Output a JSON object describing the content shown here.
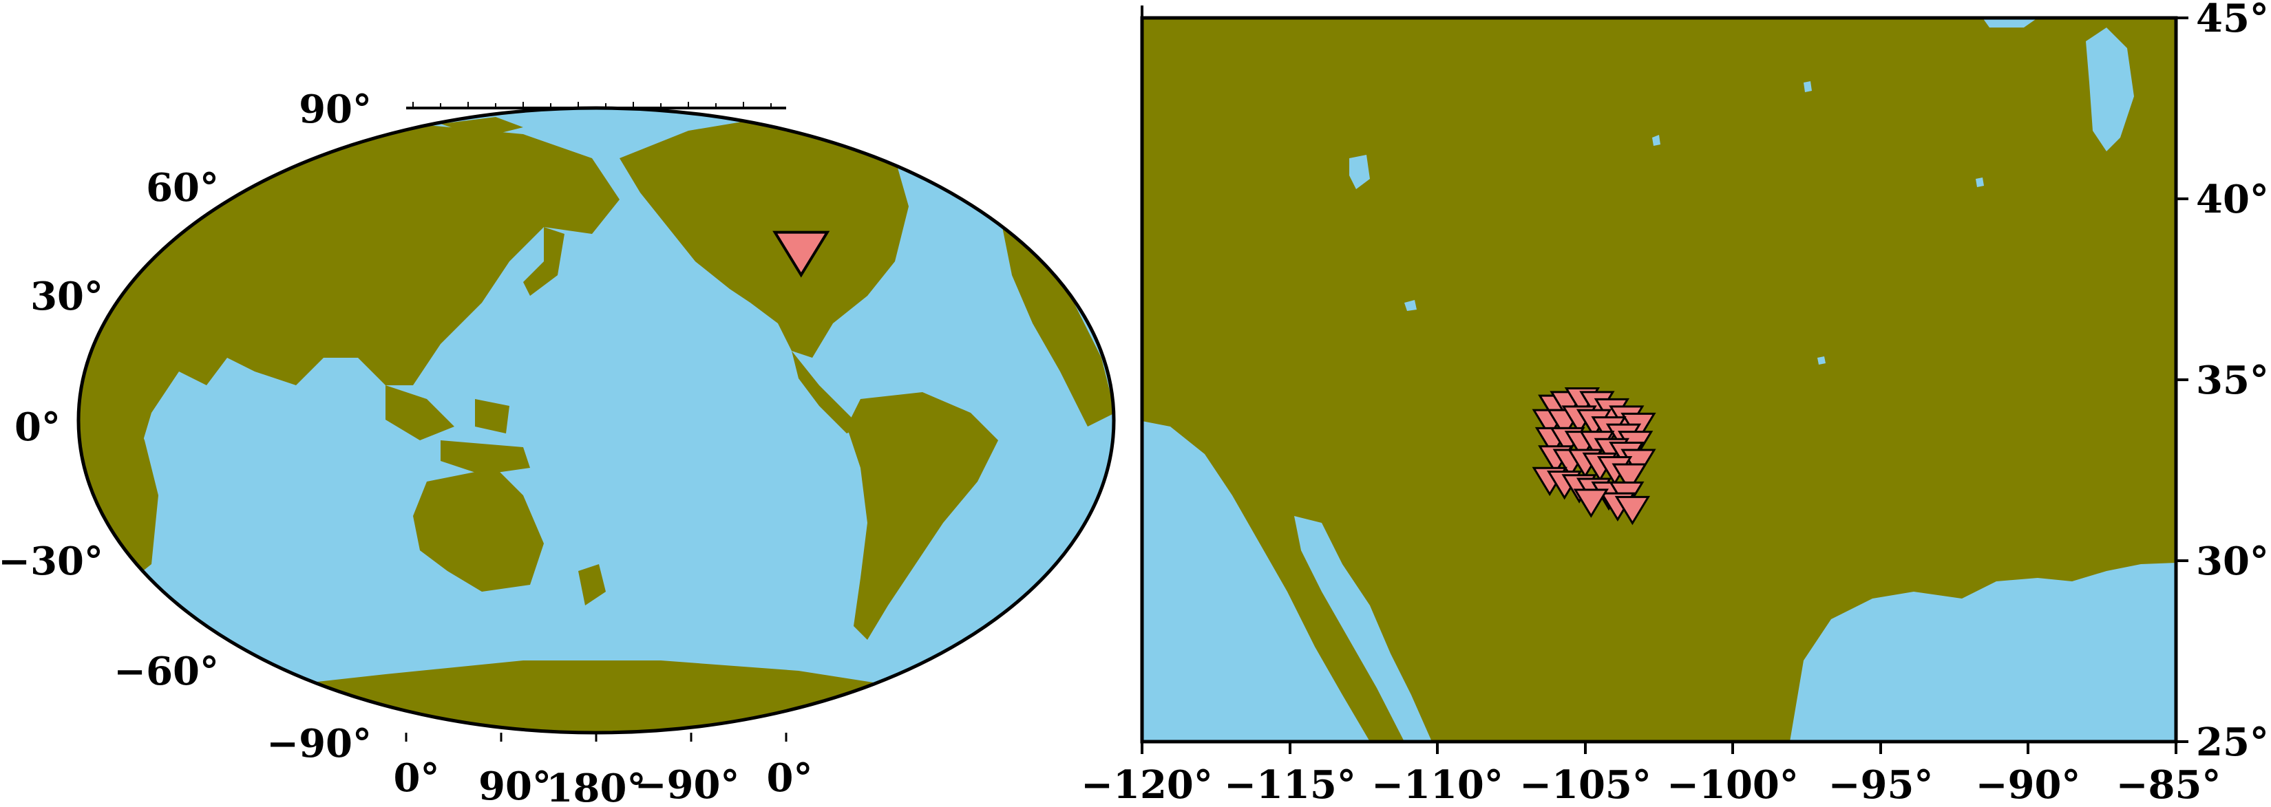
{
  "colors": {
    "ocean": "#87CEEB",
    "land": "#808000",
    "marker": "#F08080",
    "outline": "#000000"
  },
  "world_map": {
    "lat_labels": [
      "90°",
      "60°",
      "30°",
      "0°",
      "−30°",
      "−60°",
      "−90°"
    ],
    "lon_labels": [
      "0°",
      "90°",
      "180°",
      "−90°",
      "0°"
    ],
    "markers": [
      {
        "lon": -105,
        "lat": 33
      }
    ]
  },
  "regional_map": {
    "lon_labels": [
      "−120°",
      "−115°",
      "−110°",
      "−105°",
      "−100°",
      "−95°",
      "−90°",
      "−85°"
    ],
    "lat_labels": [
      "25°",
      "30°",
      "35°",
      "40°",
      "45°"
    ],
    "xlim": [
      -120,
      -85
    ],
    "ylim": [
      25,
      45
    ],
    "stations": [
      {
        "lon": -106.0,
        "lat": 34.2
      },
      {
        "lon": -105.6,
        "lat": 34.3
      },
      {
        "lon": -105.1,
        "lat": 34.4
      },
      {
        "lon": -104.6,
        "lat": 34.3
      },
      {
        "lon": -104.1,
        "lat": 34.1
      },
      {
        "lon": -103.6,
        "lat": 33.9
      },
      {
        "lon": -103.2,
        "lat": 33.7
      },
      {
        "lon": -106.2,
        "lat": 33.8
      },
      {
        "lon": -105.7,
        "lat": 33.8
      },
      {
        "lon": -105.2,
        "lat": 33.9
      },
      {
        "lon": -104.7,
        "lat": 33.8
      },
      {
        "lon": -104.2,
        "lat": 33.6
      },
      {
        "lon": -103.7,
        "lat": 33.4
      },
      {
        "lon": -103.3,
        "lat": 33.2
      },
      {
        "lon": -106.1,
        "lat": 33.3
      },
      {
        "lon": -105.6,
        "lat": 33.3
      },
      {
        "lon": -105.1,
        "lat": 33.2
      },
      {
        "lon": -104.6,
        "lat": 33.2
      },
      {
        "lon": -104.1,
        "lat": 33.0
      },
      {
        "lon": -103.6,
        "lat": 32.9
      },
      {
        "lon": -103.2,
        "lat": 32.7
      },
      {
        "lon": -106.0,
        "lat": 32.8
      },
      {
        "lon": -105.5,
        "lat": 32.7
      },
      {
        "lon": -105.0,
        "lat": 32.7
      },
      {
        "lon": -104.5,
        "lat": 32.6
      },
      {
        "lon": -104.0,
        "lat": 32.5
      },
      {
        "lon": -103.5,
        "lat": 32.3
      },
      {
        "lon": -106.2,
        "lat": 32.2
      },
      {
        "lon": -105.7,
        "lat": 32.1
      },
      {
        "lon": -105.2,
        "lat": 32.0
      },
      {
        "lon": -104.7,
        "lat": 31.9
      },
      {
        "lon": -104.2,
        "lat": 31.8
      },
      {
        "lon": -103.6,
        "lat": 31.8
      },
      {
        "lon": -103.9,
        "lat": 31.5
      },
      {
        "lon": -103.4,
        "lat": 31.4
      },
      {
        "lon": -104.8,
        "lat": 31.6
      }
    ]
  }
}
